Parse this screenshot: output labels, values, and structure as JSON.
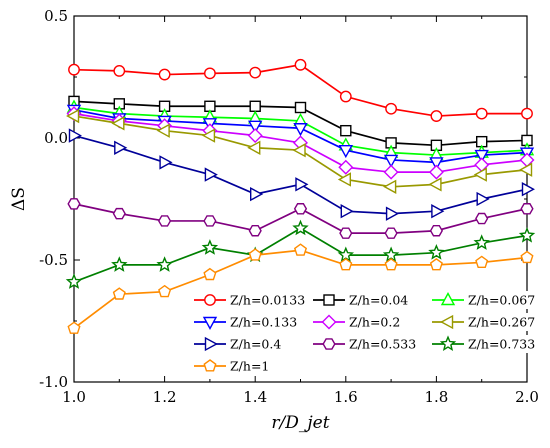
{
  "chart_data": {
    "type": "line",
    "xlabel": "r/D_jet",
    "ylabel": "ΔS",
    "xlim": [
      1.0,
      2.0
    ],
    "ylim": [
      -1.0,
      0.5
    ],
    "x_ticks": [
      "1.0",
      "1.2",
      "1.4",
      "1.6",
      "1.8",
      "2.0"
    ],
    "y_ticks": [
      "0.5",
      "0.0",
      "-0.5",
      "-1.0"
    ],
    "grid": false,
    "legend_position": "bottom",
    "x": [
      1.0,
      1.1,
      1.2,
      1.3,
      1.4,
      1.5,
      1.6,
      1.7,
      1.8,
      1.9,
      2.0
    ],
    "series": [
      {
        "name": "Z/h=0.0133",
        "color": "#ff0000",
        "marker": "circle",
        "values": [
          0.28,
          0.275,
          0.26,
          0.265,
          0.268,
          0.3,
          0.17,
          0.12,
          0.09,
          0.1,
          0.1
        ]
      },
      {
        "name": "Z/h=0.04",
        "color": "#000000",
        "marker": "square",
        "values": [
          0.15,
          0.14,
          0.13,
          0.13,
          0.13,
          0.125,
          0.03,
          -0.02,
          -0.03,
          -0.015,
          -0.01
        ]
      },
      {
        "name": "Z/h=0.067",
        "color": "#00ff00",
        "marker": "triangle-up",
        "values": [
          0.125,
          0.1,
          0.09,
          0.085,
          0.08,
          0.07,
          -0.03,
          -0.06,
          -0.07,
          -0.06,
          -0.05
        ]
      },
      {
        "name": "Z/h=0.133",
        "color": "#0000ff",
        "marker": "triangle-down",
        "values": [
          0.115,
          0.08,
          0.07,
          0.06,
          0.05,
          0.04,
          -0.05,
          -0.09,
          -0.1,
          -0.07,
          -0.06
        ]
      },
      {
        "name": "Z/h=0.2",
        "color": "#cc00ff",
        "marker": "diamond",
        "values": [
          0.1,
          0.07,
          0.05,
          0.03,
          0.01,
          -0.02,
          -0.12,
          -0.14,
          -0.14,
          -0.11,
          -0.09
        ]
      },
      {
        "name": "Z/h=0.267",
        "color": "#999900",
        "marker": "triangle-left",
        "values": [
          0.09,
          0.06,
          0.03,
          0.01,
          -0.04,
          -0.05,
          -0.17,
          -0.2,
          -0.19,
          -0.15,
          -0.13
        ]
      },
      {
        "name": "Z/h=0.4",
        "color": "#000099",
        "marker": "triangle-right",
        "values": [
          0.01,
          -0.04,
          -0.1,
          -0.15,
          -0.23,
          -0.19,
          -0.3,
          -0.31,
          -0.3,
          -0.25,
          -0.21
        ]
      },
      {
        "name": "Z/h=0.533",
        "color": "#800080",
        "marker": "hexagon",
        "values": [
          -0.27,
          -0.31,
          -0.34,
          -0.34,
          -0.38,
          -0.29,
          -0.39,
          -0.39,
          -0.38,
          -0.33,
          -0.29
        ]
      },
      {
        "name": "Z/h=0.733",
        "color": "#008000",
        "marker": "star",
        "values": [
          -0.59,
          -0.52,
          -0.52,
          -0.45,
          -0.48,
          -0.37,
          -0.48,
          -0.48,
          -0.47,
          -0.43,
          -0.4
        ]
      },
      {
        "name": "Z/h=1",
        "color": "#ff8c00",
        "marker": "pentagon",
        "values": [
          -0.78,
          -0.64,
          -0.63,
          -0.56,
          -0.48,
          -0.46,
          -0.52,
          -0.52,
          -0.52,
          -0.51,
          -0.49
        ]
      }
    ]
  }
}
